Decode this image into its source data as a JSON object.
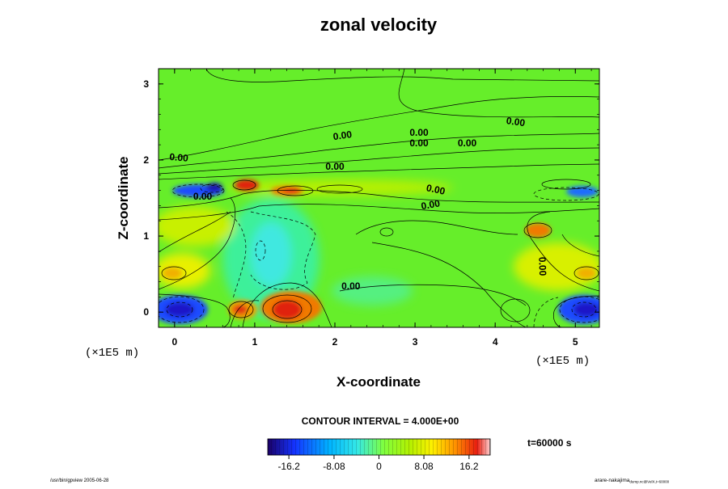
{
  "chart_data": {
    "type": "heatmap",
    "title": "zonal velocity",
    "xlabel": "X-coordinate",
    "ylabel": "Z-coordinate",
    "x_unit_label": "(×1E5 m)",
    "xlim": [
      -0.2,
      5.3
    ],
    "ylim": [
      -0.2,
      3.2
    ],
    "x_ticks": [
      "0",
      "1",
      "2",
      "3",
      "4",
      "5"
    ],
    "x_tick_values": [
      0,
      1,
      2,
      3,
      4,
      5
    ],
    "y_ticks": [
      "0",
      "1",
      "2",
      "3"
    ],
    "y_tick_values": [
      0,
      1,
      2,
      3
    ],
    "contour_interval_text": "CONTOUR INTERVAL = 4.000E+00",
    "time_text": "t=60000 s",
    "contour_labels": [
      {
        "text": "0.00",
        "x": 0.05,
        "z": 1.99,
        "angle": 5
      },
      {
        "text": "0.00",
        "x": 0.35,
        "z": 1.48,
        "angle": 0
      },
      {
        "text": "0.00",
        "x": 2.1,
        "z": 2.28,
        "angle": -8
      },
      {
        "text": "0.00",
        "x": 2.0,
        "z": 1.87,
        "angle": 0
      },
      {
        "text": "0.00",
        "x": 3.05,
        "z": 2.32,
        "angle": 0
      },
      {
        "text": "0.00",
        "x": 3.05,
        "z": 2.18,
        "angle": 0
      },
      {
        "text": "0.00",
        "x": 3.65,
        "z": 2.18,
        "angle": 0
      },
      {
        "text": "0.00",
        "x": 4.25,
        "z": 2.46,
        "angle": 8
      },
      {
        "text": "0.00",
        "x": 3.25,
        "z": 1.57,
        "angle": 12
      },
      {
        "text": "0.00",
        "x": 3.2,
        "z": 1.37,
        "angle": -10
      },
      {
        "text": "0.00",
        "x": 4.55,
        "z": 0.6,
        "angle": 88
      },
      {
        "text": "0.00",
        "x": 2.2,
        "z": 0.3,
        "angle": 0
      }
    ],
    "features": [
      {
        "kind": "jet-min",
        "x": 0.1,
        "z": 0.0,
        "value": -16
      },
      {
        "kind": "jet-min",
        "x": 5.15,
        "z": 0.0,
        "value": -16
      },
      {
        "kind": "shear-min",
        "x": 0.35,
        "z": 1.6,
        "value": -16
      },
      {
        "kind": "shear-max",
        "x": 0.9,
        "z": 1.65,
        "value": 16
      },
      {
        "kind": "shear-max",
        "x": 1.45,
        "z": 1.57,
        "value": 12
      },
      {
        "kind": "jet-max",
        "x": 0.85,
        "z": 0.0,
        "value": 12
      },
      {
        "kind": "jet-max",
        "x": 1.45,
        "z": 0.0,
        "value": 16
      },
      {
        "kind": "local-max",
        "x": 0.0,
        "z": 0.5,
        "value": 8
      },
      {
        "kind": "local-max",
        "x": 5.1,
        "z": 0.5,
        "value": 8
      },
      {
        "kind": "local-max",
        "x": 4.6,
        "z": 1.05,
        "value": 12
      },
      {
        "kind": "local-min",
        "x": 1.1,
        "z": 0.9,
        "value": -8
      }
    ]
  },
  "colorbar": {
    "tick_labels": [
      "-16.2",
      "-8.08",
      "0",
      "8.08",
      "16.2"
    ],
    "tick_values": [
      -16.2,
      -8.08,
      0,
      8.08,
      16.2
    ],
    "range": [
      -20,
      20
    ]
  },
  "footer": {
    "left": "/usr/bin/gpview 2005-06-28",
    "right_main": "arare-nakajima",
    "right_sub": "dump.nc@VelX,t=60000"
  }
}
